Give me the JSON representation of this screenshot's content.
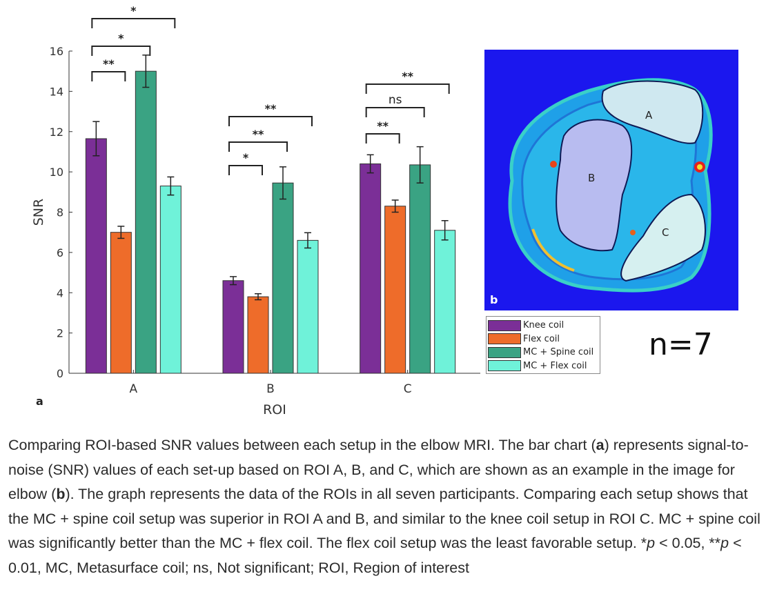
{
  "chart_data": {
    "type": "bar",
    "panel_label": "a",
    "xlabel": "ROI",
    "ylabel": "SNR",
    "ylim": [
      0,
      16
    ],
    "yticks": [
      "0",
      "2",
      "4",
      "6",
      "8",
      "10",
      "12",
      "14",
      "16"
    ],
    "categories": [
      "A",
      "B",
      "C"
    ],
    "series": [
      {
        "name": "Knee coil",
        "color": "#7b2f97",
        "values": [
          11.65,
          4.6,
          10.4
        ],
        "errors": [
          0.85,
          0.2,
          0.45
        ]
      },
      {
        "name": "Flex coil",
        "color": "#ee6c2a",
        "values": [
          7.0,
          3.8,
          8.3
        ],
        "errors": [
          0.3,
          0.15,
          0.3
        ]
      },
      {
        "name": "MC + Spine coil",
        "color": "#3aa383",
        "values": [
          15.0,
          9.45,
          10.35
        ],
        "errors": [
          0.8,
          0.8,
          0.9
        ]
      },
      {
        "name": "MC + Flex coil",
        "color": "#6ff2d9",
        "values": [
          9.3,
          6.6,
          7.1
        ],
        "errors": [
          0.45,
          0.38,
          0.48
        ]
      }
    ],
    "significance": [
      {
        "category": "A",
        "pairs": [
          {
            "from": 0,
            "to": 1,
            "label": "**"
          },
          {
            "from": 0,
            "to": 2,
            "label": "*"
          },
          {
            "from": 0,
            "to": 3,
            "label": "*"
          }
        ]
      },
      {
        "category": "B",
        "pairs": [
          {
            "from": 0,
            "to": 1,
            "label": "*"
          },
          {
            "from": 0,
            "to": 2,
            "label": "**"
          },
          {
            "from": 0,
            "to": 3,
            "label": "**"
          }
        ]
      },
      {
        "category": "C",
        "pairs": [
          {
            "from": 0,
            "to": 1,
            "label": "**"
          },
          {
            "from": 0,
            "to": 2,
            "label": "ns"
          },
          {
            "from": 0,
            "to": 3,
            "label": "**"
          }
        ]
      }
    ]
  },
  "mri_panel": {
    "panel_label": "b",
    "roi_labels": [
      "A",
      "B",
      "C"
    ],
    "sample_size": "n=7"
  },
  "caption": {
    "part1": "Comparing ROI-based SNR values between each setup in the elbow MRI. The bar chart (",
    "bold_a": "a",
    "part2": ") represents signal-to-noise (SNR) values of each set-up based on ROI A, B, and C, which are shown as an example in the image for elbow (",
    "bold_b": "b",
    "part3": "). The graph represents the data of the ROIs in all seven participants. Comparing each setup shows that the MC + spine coil setup was superior in ROI A and B, and similar to the knee coil setup in ROI C. MC + spine coil was significantly better than the MC + flex coil. The flex coil setup was the least favorable setup. *",
    "p1": "p",
    "part4": " < 0.05, **",
    "p2": "p",
    "part5": " < 0.01, MC, Metasurface coil; ns, Not significant; ROI, Region of interest"
  }
}
